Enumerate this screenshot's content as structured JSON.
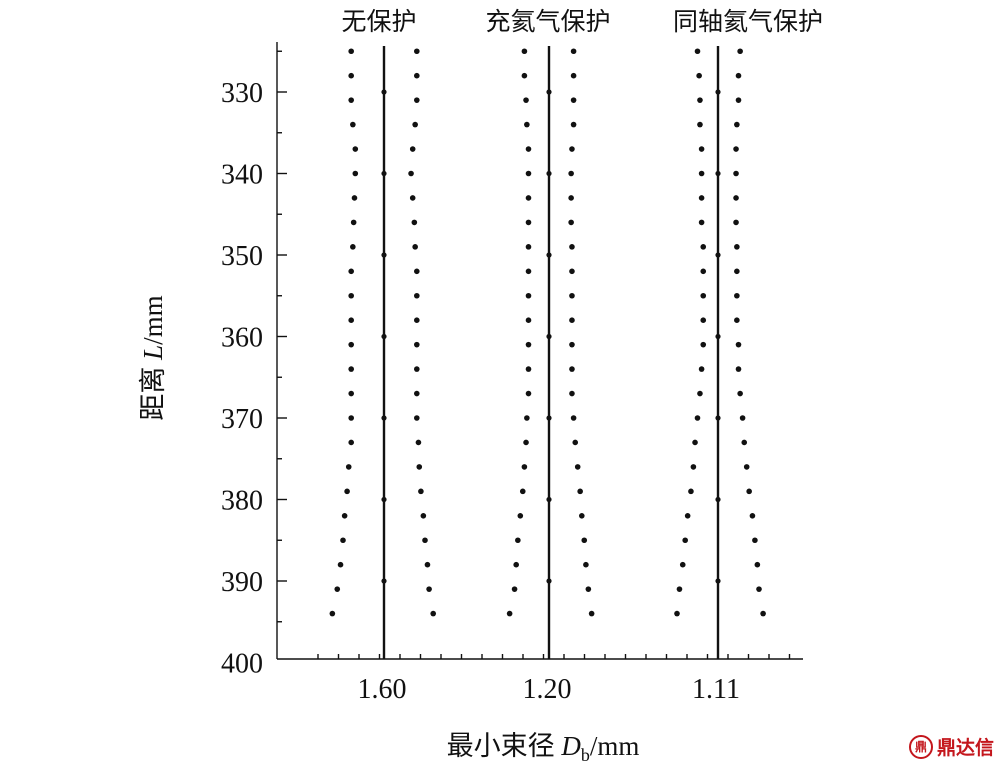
{
  "chart_data": {
    "type": "scatter",
    "group_titles": [
      "无保护",
      "充氦气保护",
      "同轴氦气保护"
    ],
    "xlabel": {
      "prefix": "最小束径 ",
      "var": "D",
      "sub": "b",
      "suffix": "/mm"
    },
    "ylabel": {
      "prefix": "距离 ",
      "var": "L",
      "suffix": "/mm"
    },
    "ylim": [
      324,
      400
    ],
    "y_inverted": true,
    "y_ticks": [
      330,
      340,
      350,
      360,
      370,
      380,
      390,
      400
    ],
    "x_tick_labels": [
      "1.60",
      "1.20",
      "1.11"
    ],
    "grid": false,
    "series": [
      {
        "group": "无保护",
        "min_diameter_mm": 1.6,
        "L": [
          325,
          328,
          331,
          334,
          337,
          340,
          343,
          346,
          349,
          352,
          355,
          358,
          361,
          364,
          367,
          370,
          373,
          376,
          379,
          382,
          385,
          388,
          391,
          394
        ],
        "left_offset": [
          -0.4,
          -0.4,
          -0.4,
          -0.38,
          -0.35,
          -0.35,
          -0.36,
          -0.37,
          -0.38,
          -0.4,
          -0.4,
          -0.4,
          -0.4,
          -0.4,
          -0.4,
          -0.4,
          -0.4,
          -0.43,
          -0.45,
          -0.48,
          -0.5,
          -0.53,
          -0.57,
          -0.63
        ],
        "right_offset": [
          0.4,
          0.4,
          0.4,
          0.38,
          0.35,
          0.33,
          0.35,
          0.37,
          0.38,
          0.4,
          0.4,
          0.4,
          0.4,
          0.4,
          0.4,
          0.4,
          0.42,
          0.43,
          0.45,
          0.48,
          0.5,
          0.53,
          0.55,
          0.6
        ]
      },
      {
        "group": "充氦气保护",
        "min_diameter_mm": 1.2,
        "L": [
          325,
          328,
          331,
          334,
          337,
          340,
          343,
          346,
          349,
          352,
          355,
          358,
          361,
          364,
          367,
          370,
          373,
          376,
          379,
          382,
          385,
          388,
          391,
          394
        ],
        "left_offset": [
          -0.3,
          -0.3,
          -0.28,
          -0.27,
          -0.25,
          -0.25,
          -0.25,
          -0.25,
          -0.25,
          -0.25,
          -0.25,
          -0.25,
          -0.25,
          -0.25,
          -0.25,
          -0.27,
          -0.28,
          -0.3,
          -0.32,
          -0.35,
          -0.38,
          -0.4,
          -0.42,
          -0.48
        ],
        "right_offset": [
          0.3,
          0.3,
          0.3,
          0.3,
          0.28,
          0.27,
          0.27,
          0.27,
          0.28,
          0.28,
          0.28,
          0.28,
          0.28,
          0.28,
          0.28,
          0.3,
          0.32,
          0.35,
          0.38,
          0.4,
          0.43,
          0.45,
          0.48,
          0.52
        ]
      },
      {
        "group": "同轴氦气保护",
        "min_diameter_mm": 1.11,
        "L": [
          325,
          328,
          331,
          334,
          337,
          340,
          343,
          346,
          349,
          352,
          355,
          358,
          361,
          364,
          367,
          370,
          373,
          376,
          379,
          382,
          385,
          388,
          391,
          394
        ],
        "left_offset": [
          -0.25,
          -0.23,
          -0.22,
          -0.22,
          -0.2,
          -0.2,
          -0.2,
          -0.2,
          -0.18,
          -0.18,
          -0.18,
          -0.18,
          -0.18,
          -0.2,
          -0.22,
          -0.25,
          -0.28,
          -0.3,
          -0.33,
          -0.37,
          -0.4,
          -0.43,
          -0.47,
          -0.5
        ],
        "right_offset": [
          0.27,
          0.25,
          0.25,
          0.23,
          0.22,
          0.22,
          0.22,
          0.22,
          0.23,
          0.23,
          0.23,
          0.23,
          0.25,
          0.25,
          0.27,
          0.3,
          0.32,
          0.35,
          0.38,
          0.42,
          0.45,
          0.48,
          0.5,
          0.55
        ]
      }
    ]
  },
  "watermark": {
    "text": "鼎达信",
    "mark": "鼎"
  }
}
